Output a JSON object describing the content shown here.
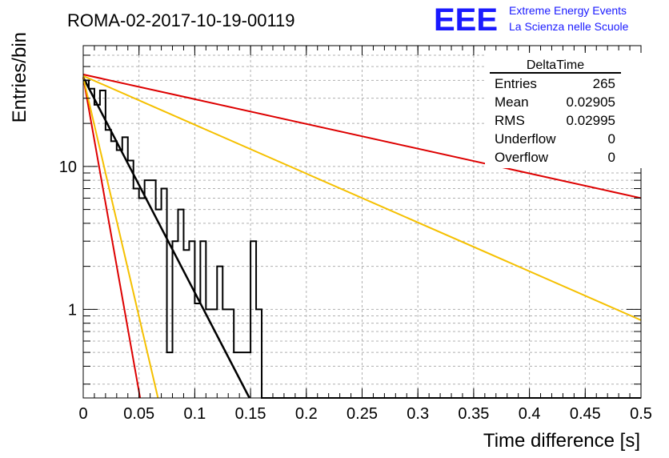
{
  "header": {
    "run_title": "ROMA-02-2017-10-19-00119",
    "logo_text": "EEE",
    "logo_line1": "Extreme Energy Events",
    "logo_line2": "La Scienza nelle Scuole"
  },
  "stats_box": {
    "title": "DeltaTime",
    "rows": [
      {
        "label": "Entries",
        "value": "265"
      },
      {
        "label": "Mean",
        "value": "0.02905"
      },
      {
        "label": "RMS",
        "value": "0.02995"
      },
      {
        "label": "Underflow",
        "value": "0"
      },
      {
        "label": "Overflow",
        "value": "0"
      }
    ]
  },
  "colors": {
    "histogram": "#000000",
    "fit": "#000000",
    "red_lines": "#dd0000",
    "yellow_lines": "#f5c000",
    "logo": "#1a1aff",
    "grid": "#b0b0b0"
  },
  "chart_data": {
    "type": "line",
    "xlabel": "Time difference [s]",
    "ylabel": "Entries/bin",
    "xlim": [
      0,
      0.5
    ],
    "ylim": [
      0.24,
      70
    ],
    "y_log": true,
    "grid": true,
    "x_tick_labels": [
      {
        "v": 0,
        "t": "0"
      },
      {
        "v": 0.05,
        "t": "0.05"
      },
      {
        "v": 0.1,
        "t": "0.1"
      },
      {
        "v": 0.15,
        "t": "0.15"
      },
      {
        "v": 0.2,
        "t": "0.2"
      },
      {
        "v": 0.25,
        "t": "0.25"
      },
      {
        "v": 0.3,
        "t": "0.3"
      },
      {
        "v": 0.35,
        "t": "0.35"
      },
      {
        "v": 0.4,
        "t": "0.4"
      },
      {
        "v": 0.45,
        "t": "0.45"
      },
      {
        "v": 0.5,
        "t": "0.5"
      }
    ],
    "y_tick_labels": [
      {
        "v": 1,
        "t": "1"
      },
      {
        "v": 10,
        "t": "10"
      }
    ],
    "histogram": {
      "bin_width": 0.005,
      "counts": [
        40,
        35,
        27,
        34,
        18,
        15,
        13,
        16,
        11,
        7,
        6,
        8,
        8,
        5,
        7,
        0,
        0,
        0,
        0,
        0,
        0,
        0,
        0,
        0,
        0,
        0,
        0,
        0,
        0,
        0,
        0,
        0,
        0,
        0,
        0,
        0,
        0,
        0,
        0,
        0,
        0,
        0,
        0,
        0,
        0,
        0,
        0,
        0,
        0,
        0,
        0,
        0,
        0,
        0,
        0,
        0,
        0,
        0,
        0,
        0,
        0,
        0,
        0,
        0,
        0,
        0,
        0,
        0,
        0,
        0,
        0,
        0,
        0,
        0,
        0,
        0,
        0,
        0,
        0,
        0,
        0,
        0,
        0,
        0,
        0,
        0,
        0,
        0,
        0,
        0,
        0,
        0,
        0,
        0,
        0,
        0,
        0,
        0,
        0,
        0
      ],
      "counts_tail": [
        {
          "bin": 15,
          "count": 0.5
        },
        {
          "bin": 16,
          "count": 3
        },
        {
          "bin": 17,
          "count": 5
        },
        {
          "bin": 18,
          "count": 2.6
        },
        {
          "bin": 19,
          "count": 3
        },
        {
          "bin": 20,
          "count": 1.1
        },
        {
          "bin": 21,
          "count": 3
        },
        {
          "bin": 22,
          "count": 1
        },
        {
          "bin": 23,
          "count": 1
        },
        {
          "bin": 24,
          "count": 2
        },
        {
          "bin": 25,
          "count": 1
        },
        {
          "bin": 26,
          "count": 1
        },
        {
          "bin": 27,
          "count": 0.5
        },
        {
          "bin": 28,
          "count": 0.5
        },
        {
          "bin": 29,
          "count": 0.5
        },
        {
          "bin": 30,
          "count": 3
        },
        {
          "bin": 31,
          "count": 1
        }
      ]
    },
    "series": [
      {
        "kind": "fit",
        "color": "#000000",
        "points": [
          [
            0,
            42
          ],
          [
            0.149,
            0.24
          ]
        ]
      },
      {
        "kind": "red",
        "color": "#dd0000",
        "points": [
          [
            0,
            42
          ],
          [
            0.051,
            0.24
          ]
        ]
      },
      {
        "kind": "yellow",
        "color": "#f5c000",
        "points": [
          [
            0,
            42
          ],
          [
            0.067,
            0.24
          ]
        ]
      },
      {
        "kind": "red",
        "color": "#dd0000",
        "points": [
          [
            0,
            44
          ],
          [
            0.5,
            6
          ]
        ]
      },
      {
        "kind": "yellow",
        "color": "#f5c000",
        "points": [
          [
            0,
            43
          ],
          [
            0.5,
            0.84
          ]
        ]
      }
    ]
  }
}
